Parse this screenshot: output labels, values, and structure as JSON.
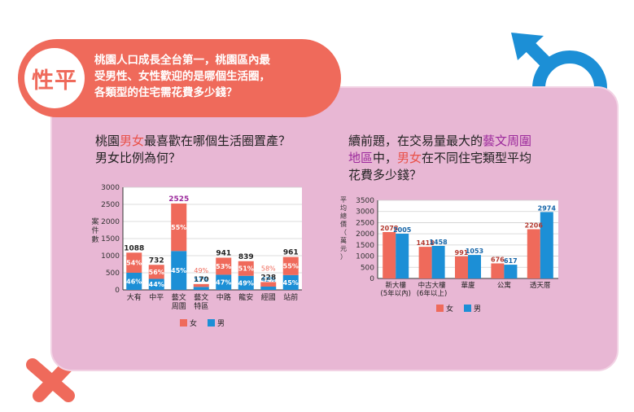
{
  "header": {
    "badge": "性平",
    "lines": [
      "桃園人口成長全台第一，桃園區內最",
      "受男性、女性歡迎的是哪個生活圈，",
      "各類型的住宅需花費多少錢？"
    ]
  },
  "colors": {
    "female": "#ef6a5b",
    "male": "#1c8fd6",
    "card": "#e8b7d4",
    "header": "#ef6a5b",
    "highlight_red": "#e9524a",
    "highlight_purple": "#9c2a9c"
  },
  "icons": [
    "male-symbol-icon",
    "female-symbol-icon"
  ],
  "question1": {
    "p1": "桃園",
    "p2": "男女",
    "p3": "最喜歡在哪個生活圈置產？",
    "line2": "男女比例為何？"
  },
  "question2": {
    "line1": "續前題，在交易量最大的",
    "line1_hl": "藝文周圍",
    "line2_hl": "地區",
    "line2_mid": "中，",
    "line2_hl2": "男女",
    "line2_end": "在不同住宅類型平均",
    "line3": "花費多少錢？"
  },
  "chart_data": [
    {
      "type": "bar",
      "stacked": true,
      "ylabel": "案件數",
      "ylim": [
        0,
        3000
      ],
      "yticks": [
        "0",
        "500",
        "1000",
        "1500",
        "2000",
        "2500",
        "3000"
      ],
      "categories": [
        [
          "大有"
        ],
        [
          "中平"
        ],
        [
          "藝文",
          "周圍"
        ],
        [
          "藝文",
          "特區"
        ],
        [
          "中路"
        ],
        [
          "龍安"
        ],
        [
          "經國"
        ],
        [
          "站前"
        ]
      ],
      "totals": [
        1088,
        732,
        2525,
        170,
        941,
        839,
        228,
        961
      ],
      "total_labels": [
        "1088",
        "732",
        "2525",
        "170",
        "941",
        "839",
        "228",
        "961"
      ],
      "series": [
        {
          "name": "男",
          "pct": [
            46,
            44,
            45,
            51,
            47,
            49,
            42,
            45
          ],
          "pct_labels": [
            "46%",
            "44%",
            "45%",
            "51%",
            "47%",
            "49%",
            "42%",
            "45%"
          ]
        },
        {
          "name": "女",
          "pct": [
            54,
            56,
            55,
            49,
            53,
            51,
            58,
            55
          ],
          "pct_labels": [
            "54%",
            "56%",
            "55%",
            "49%",
            "53%",
            "51%",
            "58%",
            "55%"
          ]
        }
      ],
      "legend": [
        "女",
        "男"
      ],
      "legend_position": "bottom",
      "grid": true
    },
    {
      "type": "bar",
      "ylabel": "平均總價（萬元）",
      "ylim": [
        0,
        3500
      ],
      "yticks": [
        "0",
        "500",
        "1000",
        "1500",
        "2000",
        "2500",
        "3000",
        "3500"
      ],
      "categories": [
        [
          "新大樓",
          "(5年以內)"
        ],
        [
          "中古大樓",
          "(6年以上)"
        ],
        [
          "華廈"
        ],
        [
          "公寓"
        ],
        [
          "透天厝"
        ]
      ],
      "series": [
        {
          "name": "女",
          "values": [
            2078,
            1418,
            991,
            676,
            2206
          ],
          "labels": [
            "2078",
            "1418",
            "991",
            "676",
            "2206"
          ]
        },
        {
          "name": "男",
          "values": [
            2005,
            1458,
            1053,
            617,
            2974
          ],
          "labels": [
            "2005",
            "1458",
            "1053",
            "617",
            "2974"
          ]
        }
      ],
      "legend": [
        "女",
        "男"
      ],
      "legend_position": "bottom",
      "grid": true
    }
  ]
}
